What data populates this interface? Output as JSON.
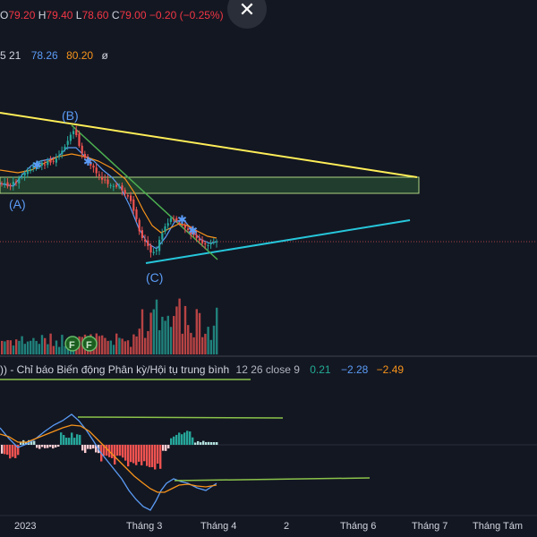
{
  "header": {
    "ohlc": [
      {
        "k": "O",
        "v": "79.20"
      },
      {
        "k": "H",
        "v": "79.40"
      },
      {
        "k": "L",
        "v": "78.60"
      },
      {
        "k": "C",
        "v": "79.00"
      }
    ],
    "change": "−0.20 (−0.25%)",
    "close_icon": "close-icon"
  },
  "indicator1": {
    "params": "5 21",
    "value_blue": "78.26",
    "value_orange": "80.20",
    "extra": "ø"
  },
  "annotations": {
    "wave_a": "(A)",
    "wave_b": "(B)",
    "wave_c": "(C)",
    "earnings_1": "F",
    "earnings_2": "F"
  },
  "macd_legend": {
    "prefix": "))",
    "name": "- Chỉ báo Biến động Phân kỳ/Hội tụ trung bình",
    "params": "12 26 close 9",
    "histogram": "0.21",
    "macd": "−2.28",
    "signal": "−2.49"
  },
  "time_axis": [
    "2023",
    "Tháng 3",
    "Tháng 4",
    "2",
    "Tháng 6",
    "Tháng 7",
    "Tháng Tám"
  ],
  "colors": {
    "background": "#131722",
    "up": "#26a69a",
    "down": "#ef5350",
    "trend_yellow": "#ffee58",
    "trend_cyan": "#26c6da",
    "trend_green": "#4caf50",
    "ma_fast": "#5b9cf6",
    "ma_slow": "#f7931a"
  }
}
